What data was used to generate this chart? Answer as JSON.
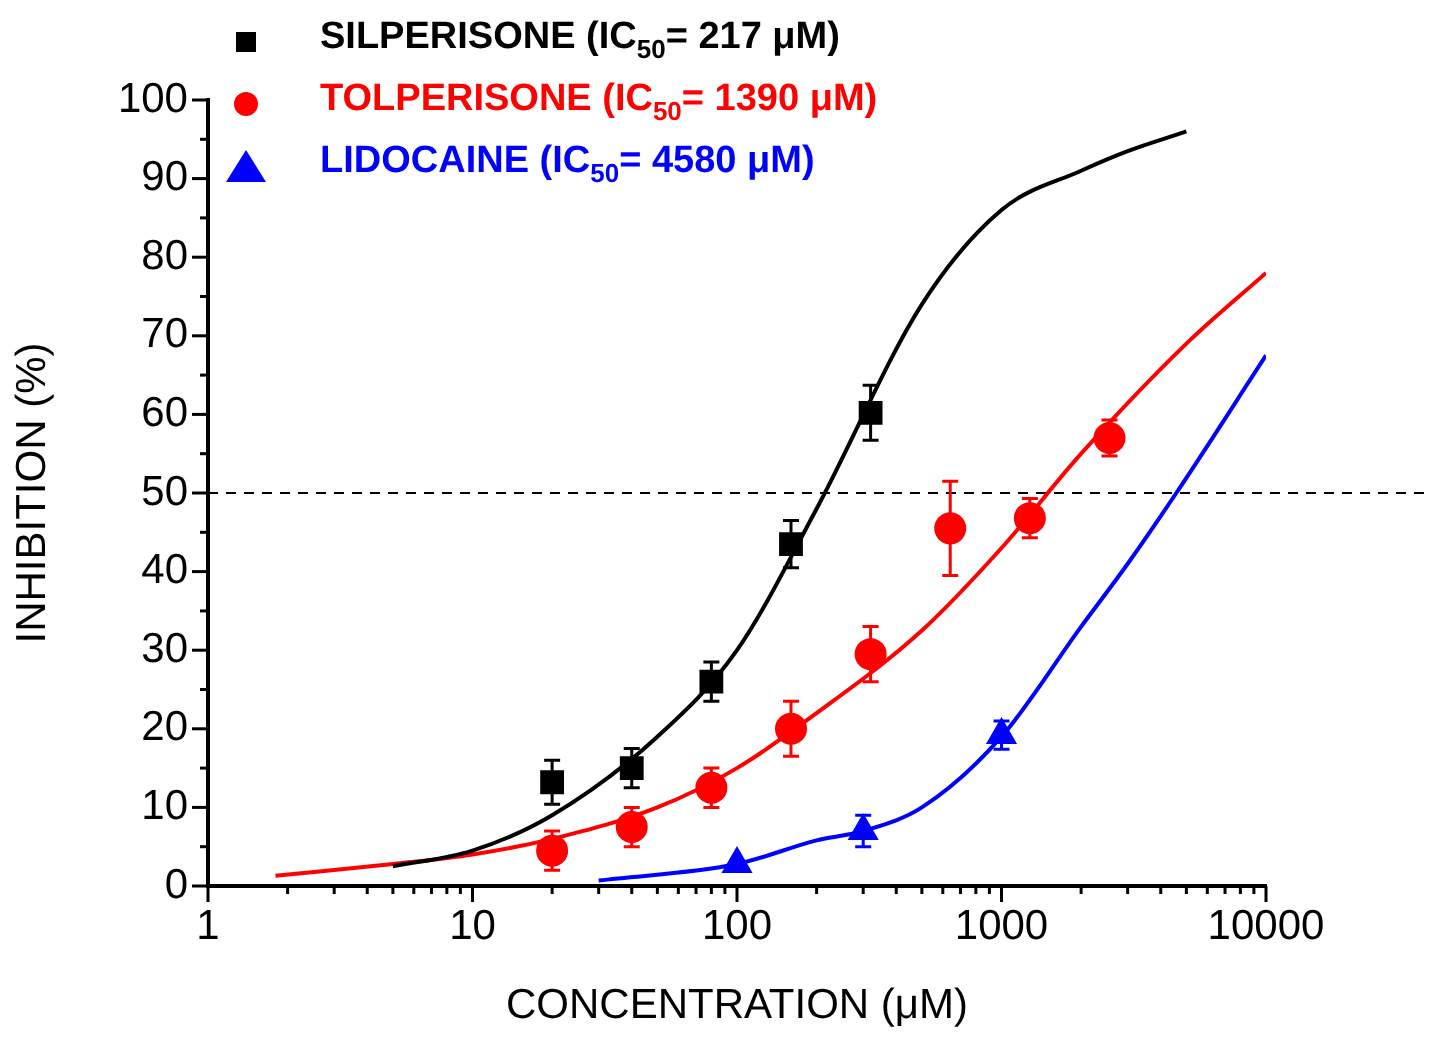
{
  "chart_data": {
    "type": "scatter",
    "xlabel": "CONCENTRATION (μM)",
    "ylabel": "INHIBITION (%)",
    "log": "x",
    "grid": false,
    "legend": "top left",
    "line_style": "solid",
    "xlim": [
      1,
      10000
    ],
    "xticks": [
      1,
      {
        "value": 2,
        "label": null
      },
      {
        "value": 3,
        "label": null
      },
      {
        "value": 4,
        "label": null
      },
      {
        "value": 5,
        "label": null
      },
      {
        "value": 6,
        "label": null
      },
      {
        "value": 7,
        "label": null
      },
      {
        "value": 8,
        "label": null
      },
      {
        "value": 9,
        "label": null
      },
      10,
      {
        "value": 20,
        "label": null
      },
      {
        "value": 30,
        "label": null
      },
      {
        "value": 40,
        "label": null
      },
      {
        "value": 50,
        "label": null
      },
      {
        "value": 60,
        "label": null
      },
      {
        "value": 70,
        "label": null
      },
      {
        "value": 80,
        "label": null
      },
      {
        "value": 90,
        "label": null
      },
      100,
      {
        "value": 200,
        "label": null
      },
      {
        "value": 300,
        "label": null
      },
      {
        "value": 400,
        "label": null
      },
      {
        "value": 500,
        "label": null
      },
      {
        "value": 600,
        "label": null
      },
      {
        "value": 700,
        "label": null
      },
      {
        "value": 800,
        "label": null
      },
      {
        "value": 900,
        "label": null
      },
      1000,
      {
        "value": 2000,
        "label": null
      },
      {
        "value": 3000,
        "label": null
      },
      {
        "value": 4000,
        "label": null
      },
      {
        "value": 5000,
        "label": null
      },
      {
        "value": 6000,
        "label": null
      },
      {
        "value": 7000,
        "label": null
      },
      {
        "value": 8000,
        "label": null
      },
      {
        "value": 9000,
        "label": null
      },
      10000
    ],
    "ylim": [
      0,
      100
    ],
    "yticks": [
      0,
      {
        "value": 5,
        "label": null
      },
      10,
      {
        "value": 15,
        "label": null
      },
      20,
      {
        "value": 25,
        "label": null
      },
      30,
      {
        "value": 35,
        "label": null
      },
      40,
      {
        "value": 45,
        "label": null
      },
      50,
      {
        "value": 55,
        "label": null
      },
      60,
      {
        "value": 65,
        "label": null
      },
      70,
      {
        "value": 75,
        "label": null
      },
      80,
      {
        "value": 85,
        "label": null
      },
      90,
      {
        "value": 95,
        "label": null
      },
      100
    ],
    "ref_lines": [
      {
        "axis": "y",
        "value": 50,
        "color": "#000000",
        "line_style": "dashed"
      }
    ],
    "series": [
      {
        "name": "SILPERISONE (IC$_{50}$= 217 μM)",
        "type": "scatter",
        "marker": "square",
        "color": "#000000",
        "x": [
          20,
          40,
          80,
          160,
          320
        ],
        "values": [
          13.2,
          15,
          26,
          43.5,
          60.2
        ],
        "errors": [
          2.8,
          2.5,
          2.5,
          3,
          3.5
        ]
      },
      {
        "name": "TOLPERISONE (IC$_{50}$= 1390 μM)",
        "type": "scatter",
        "marker": "circle",
        "color": "#ff0000",
        "x": [
          20,
          40,
          80,
          160,
          320,
          640,
          1280,
          2560
        ],
        "values": [
          4.5,
          7.5,
          12.5,
          20,
          29.5,
          45.5,
          46.8,
          57
        ],
        "errors": [
          2.5,
          2.5,
          2.5,
          3.5,
          3.5,
          6,
          2.5,
          2.3
        ]
      },
      {
        "name": "LIDOCAINE (IC$_{50}$= 4580 μM)",
        "type": "scatter",
        "marker": "triangle",
        "color": "#0000ff",
        "x": [
          100,
          300,
          1000
        ],
        "values": [
          2.8,
          7,
          19.2
        ],
        "errors": [
          null,
          2,
          1.8
        ]
      },
      {
        "type": "line",
        "marker": "none",
        "color": "#000000",
        "x": [
          5,
          10,
          20,
          50,
          100,
          200,
          500,
          1000,
          2000,
          3000,
          5000
        ],
        "values": [
          2.5,
          4.5,
          9,
          19,
          30,
          48,
          74,
          86,
          91,
          93.5,
          96
        ]
      },
      {
        "type": "line",
        "marker": "none",
        "color": "#ff0000",
        "x": [
          1.8,
          5,
          10,
          20,
          50,
          100,
          200,
          500,
          1000,
          2000,
          5000,
          10000
        ],
        "values": [
          1.3,
          2.8,
          4,
          6,
          10,
          15,
          22,
          32.5,
          43,
          55,
          69,
          78
        ]
      },
      {
        "type": "line",
        "marker": "none",
        "color": "#0000ff",
        "x": [
          30,
          100,
          200,
          300,
          500,
          1000,
          2000,
          3000,
          4580,
          10000
        ],
        "values": [
          0.7,
          2.8,
          5.8,
          7,
          10,
          19,
          33,
          41,
          50,
          67.5
        ]
      }
    ]
  }
}
